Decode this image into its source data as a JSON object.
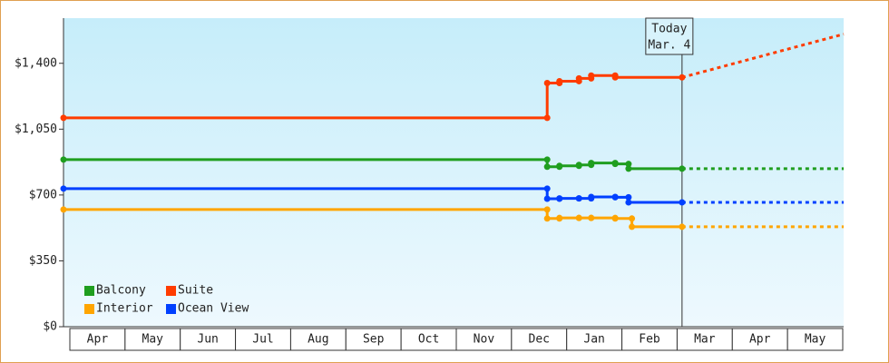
{
  "chart_data": {
    "type": "line",
    "step": true,
    "categories": [
      "Apr",
      "May",
      "Jun",
      "Jul",
      "Aug",
      "Sep",
      "Oct",
      "Nov",
      "Dec",
      "Jan",
      "Feb",
      "Mar",
      "Apr",
      "May"
    ],
    "xlim": [
      0,
      14
    ],
    "ylim": [
      0,
      1640
    ],
    "yticks": [
      {
        "value": 0,
        "label": "$0"
      },
      {
        "value": 350,
        "label": "$350"
      },
      {
        "value": 700,
        "label": "$700"
      },
      {
        "value": 1050,
        "label": "$1,050"
      },
      {
        "value": 1400,
        "label": "$1,400"
      }
    ],
    "today": 11.1,
    "today_label": "Today",
    "today_date": "Mar. 4",
    "series": [
      {
        "name": "Balcony",
        "color": "#1f9e1f",
        "x": [
          0,
          8.68,
          8.9,
          9.25,
          9.47,
          9.9,
          10.14
        ],
        "values": [
          888,
          850,
          855,
          860,
          870,
          865,
          840
        ],
        "forecast": 840
      },
      {
        "name": "Suite",
        "color": "#ff3c00",
        "x": [
          0,
          8.68,
          8.9,
          9.25,
          9.47,
          9.9
        ],
        "values": [
          1110,
          1295,
          1305,
          1320,
          1335,
          1325
        ],
        "forecast": 1555
      },
      {
        "name": "Interior",
        "color": "#ffa500",
        "x": [
          0,
          8.68,
          8.9,
          9.25,
          9.47,
          9.9,
          10.2
        ],
        "values": [
          623,
          575,
          578,
          578,
          578,
          575,
          531
        ],
        "forecast": 531
      },
      {
        "name": "Ocean View",
        "color": "#0040ff",
        "x": [
          0,
          8.68,
          8.9,
          9.25,
          9.47,
          9.9,
          10.14
        ],
        "values": [
          734,
          680,
          682,
          682,
          690,
          688,
          661
        ],
        "forecast": 661
      }
    ]
  }
}
